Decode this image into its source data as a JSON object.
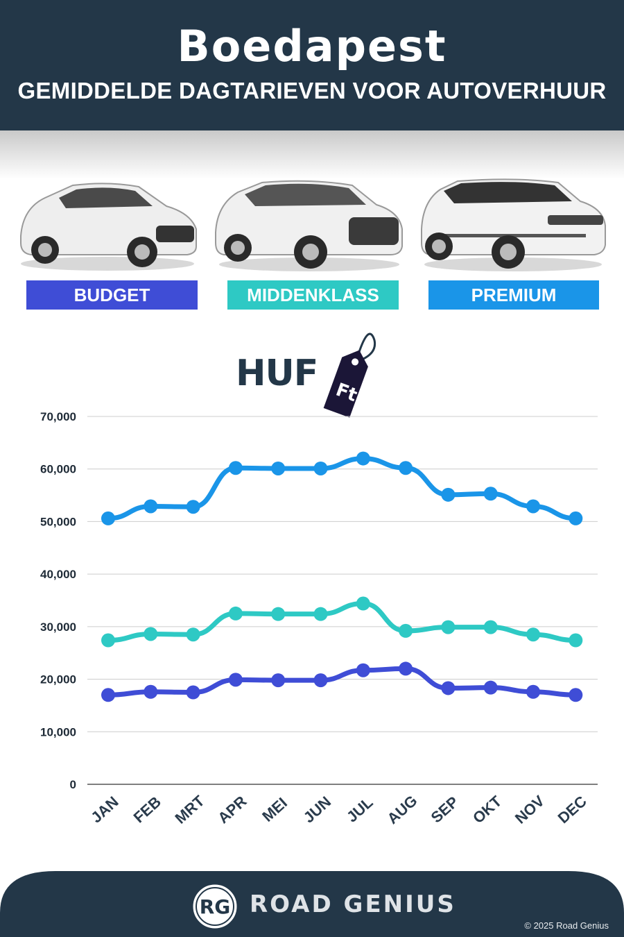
{
  "header": {
    "title": "Boedapest",
    "subtitle": "GEMIDDELDE DAGTARIEVEN VOOR AUTOVERHUUR"
  },
  "categories": [
    {
      "label": "BUDGET",
      "color": "#3f4dd6"
    },
    {
      "label": "MIDDENKLASS",
      "color": "#2ec9c4"
    },
    {
      "label": "PREMIUM",
      "color": "#1a95e8"
    }
  ],
  "currency": {
    "label": "HUF",
    "tag": "Ft"
  },
  "chart_data": {
    "type": "line",
    "x": [
      "JAN",
      "FEB",
      "MRT",
      "APR",
      "MEI",
      "JUN",
      "JUL",
      "AUG",
      "SEP",
      "OKT",
      "NOV",
      "DEC"
    ],
    "ylim": [
      0,
      70000
    ],
    "yticks": [
      "0",
      "10,000",
      "20,000",
      "30,000",
      "40,000",
      "50,000",
      "60,000",
      "70,000"
    ],
    "grid": true,
    "series": [
      {
        "name": "PREMIUM",
        "color": "#1a95e8",
        "values": [
          50600,
          52900,
          52800,
          60200,
          60100,
          60100,
          62000,
          60200,
          55100,
          55300,
          52900,
          50600
        ]
      },
      {
        "name": "MIDDENKLASS",
        "color": "#2ec9c4",
        "values": [
          27400,
          28600,
          28500,
          32500,
          32400,
          32400,
          34400,
          29200,
          29900,
          29900,
          28500,
          27400
        ]
      },
      {
        "name": "BUDGET",
        "color": "#3f4dd6",
        "values": [
          17000,
          17600,
          17500,
          19900,
          19800,
          19800,
          21700,
          22000,
          18300,
          18400,
          17600,
          17000
        ]
      }
    ]
  },
  "footer": {
    "logo": "RG",
    "brand": "ROAD GENIUS",
    "copyright": "© 2025 Road Genius",
    "bg_color": "#233748"
  }
}
